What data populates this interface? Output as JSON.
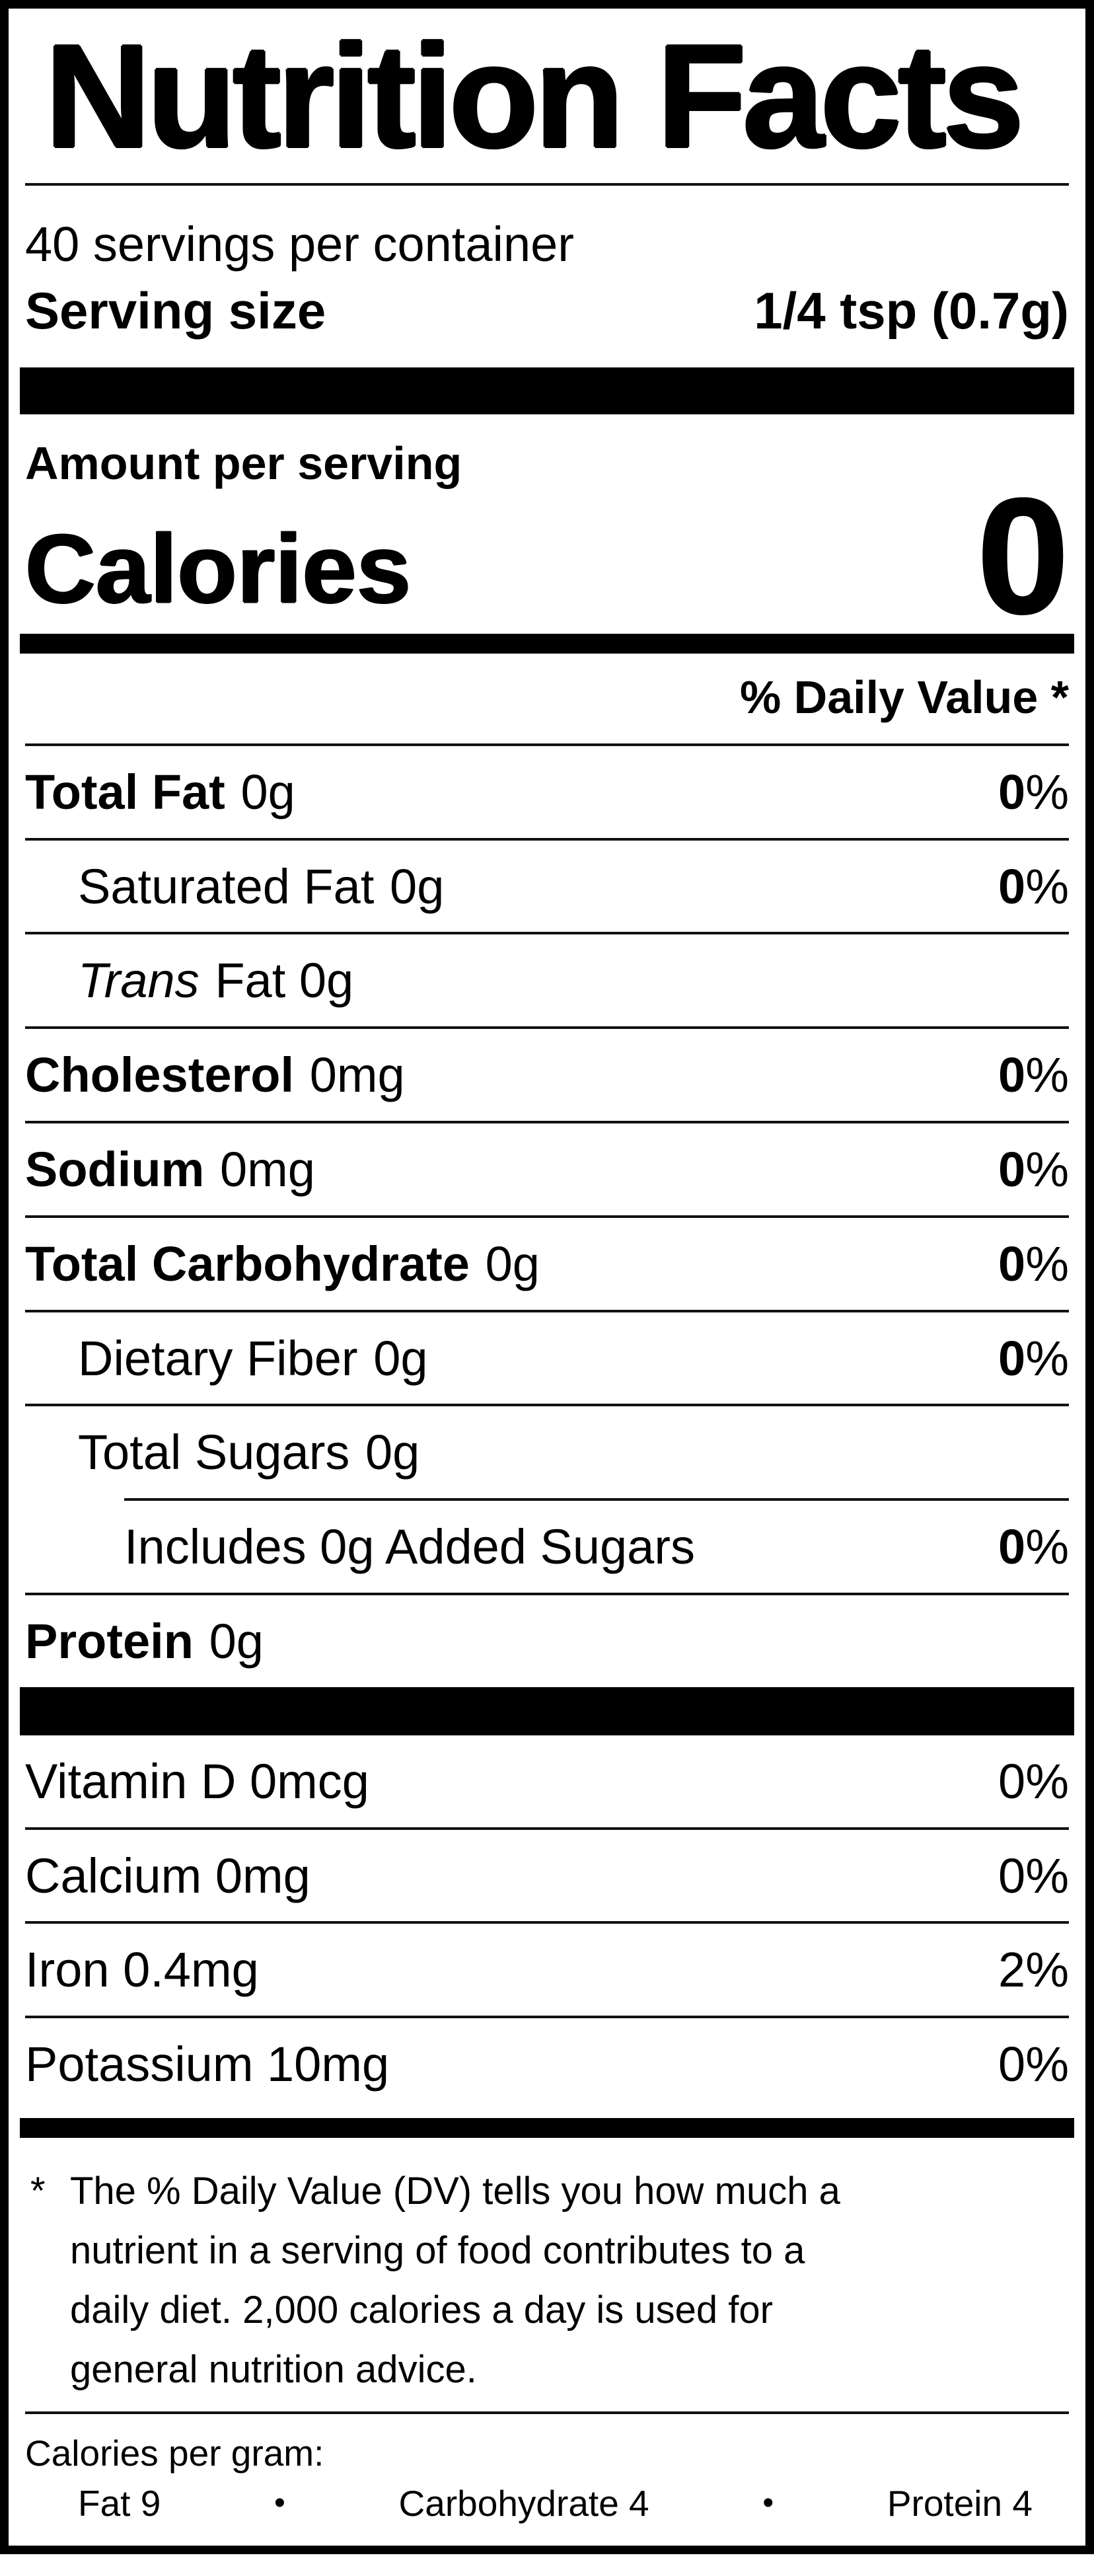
{
  "nf": {
    "title": "Nutrition Facts",
    "servings_per_container": "40 servings per container",
    "serving_size": {
      "label": "Serving size",
      "value": "1/4 tsp (0.7g)"
    },
    "amount_per_serving": "Amount per serving",
    "calories": {
      "label": "Calories",
      "value": "0"
    },
    "daily_value_header": "% Daily Value *",
    "percent_sign": "%",
    "rows": [
      {
        "name": "Total Fat",
        "amount": "0g",
        "dv": "0"
      },
      {
        "name": "Saturated Fat",
        "amount": "0g",
        "dv": "0"
      },
      {
        "name_italic": "Trans",
        "name": "Fat 0g"
      },
      {
        "name": "Cholesterol",
        "amount": "0mg",
        "dv": "0"
      },
      {
        "name": "Sodium",
        "amount": "0mg",
        "dv": "0"
      },
      {
        "name": "Total Carbohydrate",
        "amount": "0g",
        "dv": "0"
      },
      {
        "name": "Dietary Fiber",
        "amount": "0g",
        "dv": "0"
      },
      {
        "name": "Total Sugars",
        "amount": "0g"
      },
      {
        "name": "Includes 0g Added Sugars",
        "dv": "0"
      },
      {
        "name": "Protein",
        "amount": "0g"
      }
    ],
    "vitamins": [
      {
        "name": "Vitamin D 0mcg",
        "dv": "0%"
      },
      {
        "name": "Calcium 0mg",
        "dv": "0%"
      },
      {
        "name": "Iron 0.4mg",
        "dv": "2%"
      },
      {
        "name": "Potassium 10mg",
        "dv": "0%"
      }
    ],
    "footnote": {
      "marker": "*",
      "text": "The % Daily Value (DV) tells you how much a\nnutrient in a serving of food contributes to a\ndaily diet. 2,000 calories a day is used for\ngeneral nutrition advice."
    },
    "calories_per_gram": {
      "heading": "Calories per gram:",
      "bullet": "•",
      "items": [
        "Fat 9",
        "Carbohydrate 4",
        "Protein 4"
      ]
    }
  }
}
